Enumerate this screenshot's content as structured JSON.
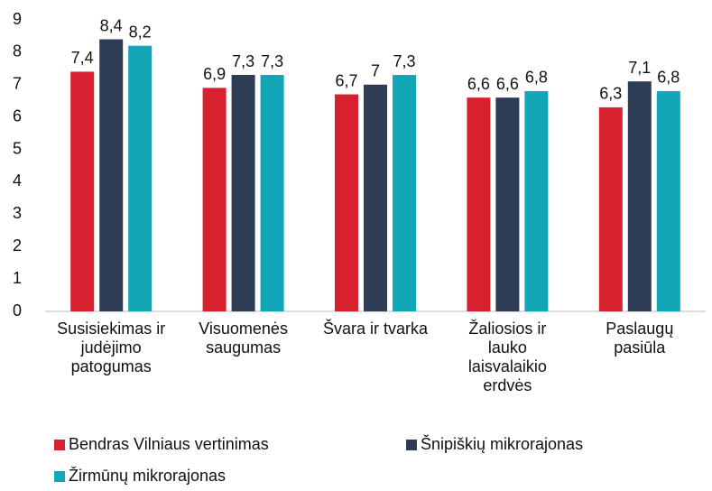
{
  "chart_data": {
    "type": "bar",
    "categories": [
      "Susisiekimas ir judėjimo patogumas",
      "Visuomenės saugumas",
      "Švara ir tvarka",
      "Žaliosios ir lauko laisvalaikio erdvės",
      "Paslaugų pasiūla"
    ],
    "series": [
      {
        "name": "Bendras Vilniaus vertinimas",
        "color": "#d7212e",
        "values": [
          7.4,
          6.9,
          6.7,
          6.6,
          6.3
        ],
        "value_labels": [
          "7,4",
          "6,9",
          "6,7",
          "6,6",
          "6,3"
        ]
      },
      {
        "name": "Šnipiškių mikrorajonas",
        "color": "#2e3d55",
        "values": [
          8.4,
          7.3,
          7,
          6.6,
          7.1
        ],
        "value_labels": [
          "8,4",
          "7,3",
          "7",
          "6,6",
          "7,1"
        ]
      },
      {
        "name": "Žirmūnų mikrorajonas",
        "color": "#12a7b6",
        "values": [
          8.2,
          7.3,
          7.3,
          6.8,
          6.8
        ],
        "value_labels": [
          "8,2",
          "7,3",
          "7,3",
          "6,8",
          "6,8"
        ]
      }
    ],
    "ylim": [
      0,
      9
    ],
    "yticks": [
      0,
      1,
      2,
      3,
      4,
      5,
      6,
      7,
      8,
      9
    ],
    "grid": false
  }
}
